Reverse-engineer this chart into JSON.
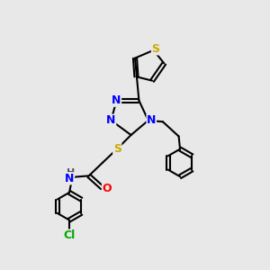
{
  "bg_color": "#e8e8e8",
  "atom_colors": {
    "N": "#0000ff",
    "S": "#ccaa00",
    "O": "#ff0000",
    "Cl": "#00aa00",
    "C": "#000000",
    "H": "#555555"
  },
  "bond_color": "#000000",
  "font_size": 9,
  "fig_size": [
    3.0,
    3.0
  ],
  "dpi": 100
}
